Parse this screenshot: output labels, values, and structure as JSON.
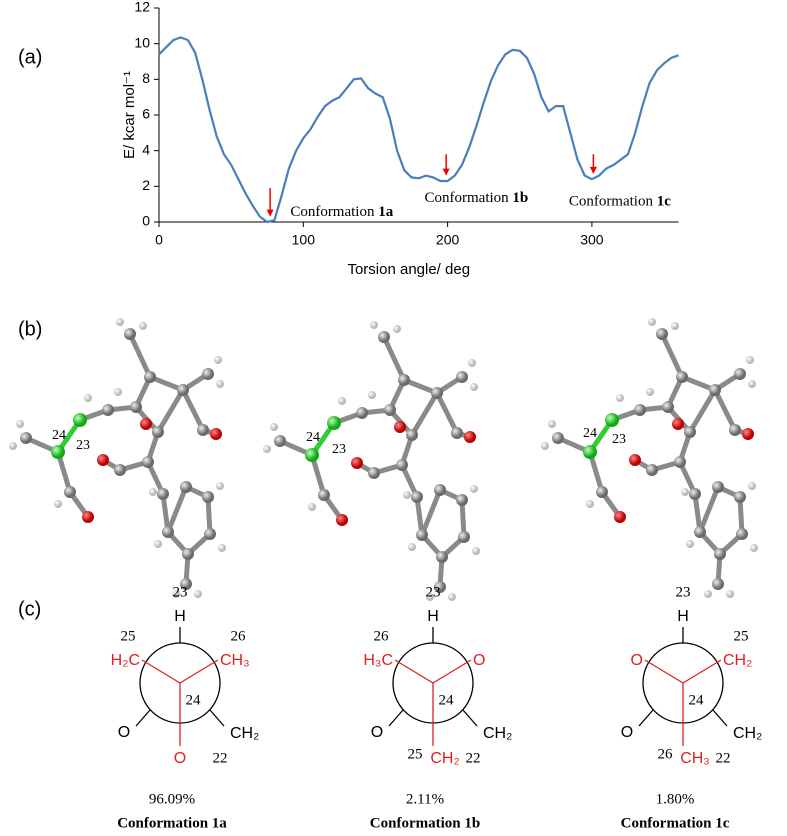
{
  "chart_data": {
    "type": "line",
    "x_label": "Torsion angle/ deg",
    "y_label": "E/ kcar mol⁻¹",
    "color": "#4a7ebb",
    "x": [
      0,
      5,
      10,
      15,
      20,
      25,
      30,
      35,
      40,
      45,
      50,
      55,
      60,
      65,
      70,
      75,
      80,
      85,
      90,
      95,
      100,
      105,
      110,
      115,
      120,
      125,
      130,
      135,
      140,
      145,
      150,
      155,
      160,
      165,
      170,
      175,
      180,
      185,
      190,
      195,
      200,
      205,
      210,
      215,
      220,
      225,
      230,
      235,
      240,
      245,
      250,
      255,
      260,
      265,
      270,
      275,
      280,
      285,
      290,
      295,
      300,
      305,
      310,
      315,
      320,
      325,
      330,
      335,
      340,
      345,
      350,
      355,
      360
    ],
    "values": [
      9.4,
      9.8,
      10.2,
      10.35,
      10.2,
      9.5,
      8.0,
      6.3,
      4.8,
      3.8,
      3.2,
      2.4,
      1.6,
      0.9,
      0.3,
      0.0,
      0.1,
      1.5,
      3.0,
      4.0,
      4.7,
      5.2,
      5.9,
      6.5,
      6.8,
      7.0,
      7.5,
      8.0,
      8.05,
      7.5,
      7.2,
      7.0,
      5.8,
      4.0,
      2.9,
      2.5,
      2.45,
      2.6,
      2.5,
      2.3,
      2.3,
      2.6,
      3.2,
      4.2,
      5.4,
      6.7,
      7.9,
      8.8,
      9.4,
      9.65,
      9.6,
      9.2,
      8.3,
      7.0,
      6.2,
      6.5,
      6.5,
      5.0,
      3.5,
      2.6,
      2.4,
      2.6,
      3.0,
      3.2,
      3.5,
      3.8,
      5.0,
      6.5,
      7.8,
      8.5,
      8.9,
      9.2,
      9.35
    ],
    "xlim": [
      0,
      360
    ],
    "xticks": [
      0,
      100,
      200,
      300
    ],
    "ylim": [
      0,
      12
    ],
    "yticks": [
      0,
      2,
      4,
      6,
      8,
      10,
      12
    ],
    "grid": false,
    "annotations": [
      {
        "text": "Conformation",
        "label": "1a",
        "x": 77,
        "y_tail": 1.9,
        "y_tip": 0.3,
        "text_x": 91,
        "text_y": 0.5
      },
      {
        "text": "Conformation",
        "label": "1b",
        "x": 199,
        "y_tail": 3.8,
        "y_tip": 2.6,
        "text_x": 184,
        "text_y": 1.3
      },
      {
        "text": "Conformation",
        "label": "1c",
        "x": 301,
        "y_tail": 3.8,
        "y_tip": 2.7,
        "text_x": 284,
        "text_y": 1.1
      }
    ]
  },
  "panels": [
    "(a)",
    "(b)",
    "(c)"
  ],
  "molecules": [
    {
      "a": "24",
      "b": "23"
    },
    {
      "a": "24",
      "b": "23"
    },
    {
      "a": "24",
      "b": "23"
    }
  ],
  "newman": [
    {
      "back_top": "H",
      "back_top_num": "23",
      "front_left": "H₂C",
      "front_left_num": "25",
      "front_right": "CH₃",
      "front_right_num": "26",
      "front_bottom": "O",
      "center": "24",
      "back_left": "O",
      "back_right": "CH₂",
      "back_right_num": "22",
      "percent": "96.09%",
      "caption": "Conformation 1a"
    },
    {
      "back_top": "H",
      "back_top_num": "23",
      "front_left": "H₃C",
      "front_left_num": "26",
      "front_right": "O",
      "front_bottom": "CH₂",
      "front_bottom_num": "25",
      "center": "24",
      "back_left": "O",
      "back_right": "CH₂",
      "back_right_num": "22",
      "percent": "2.11%",
      "caption": "Conformation 1b"
    },
    {
      "back_top": "H",
      "back_top_num": "23",
      "front_left": "O",
      "front_right": "CH₂",
      "front_right_num": "25",
      "front_bottom": "CH₃",
      "front_bottom_num": "26",
      "center": "24",
      "back_left": "O",
      "back_right": "CH₂",
      "back_right_num": "22",
      "percent": "1.80%",
      "caption": "Conformation 1c"
    }
  ]
}
